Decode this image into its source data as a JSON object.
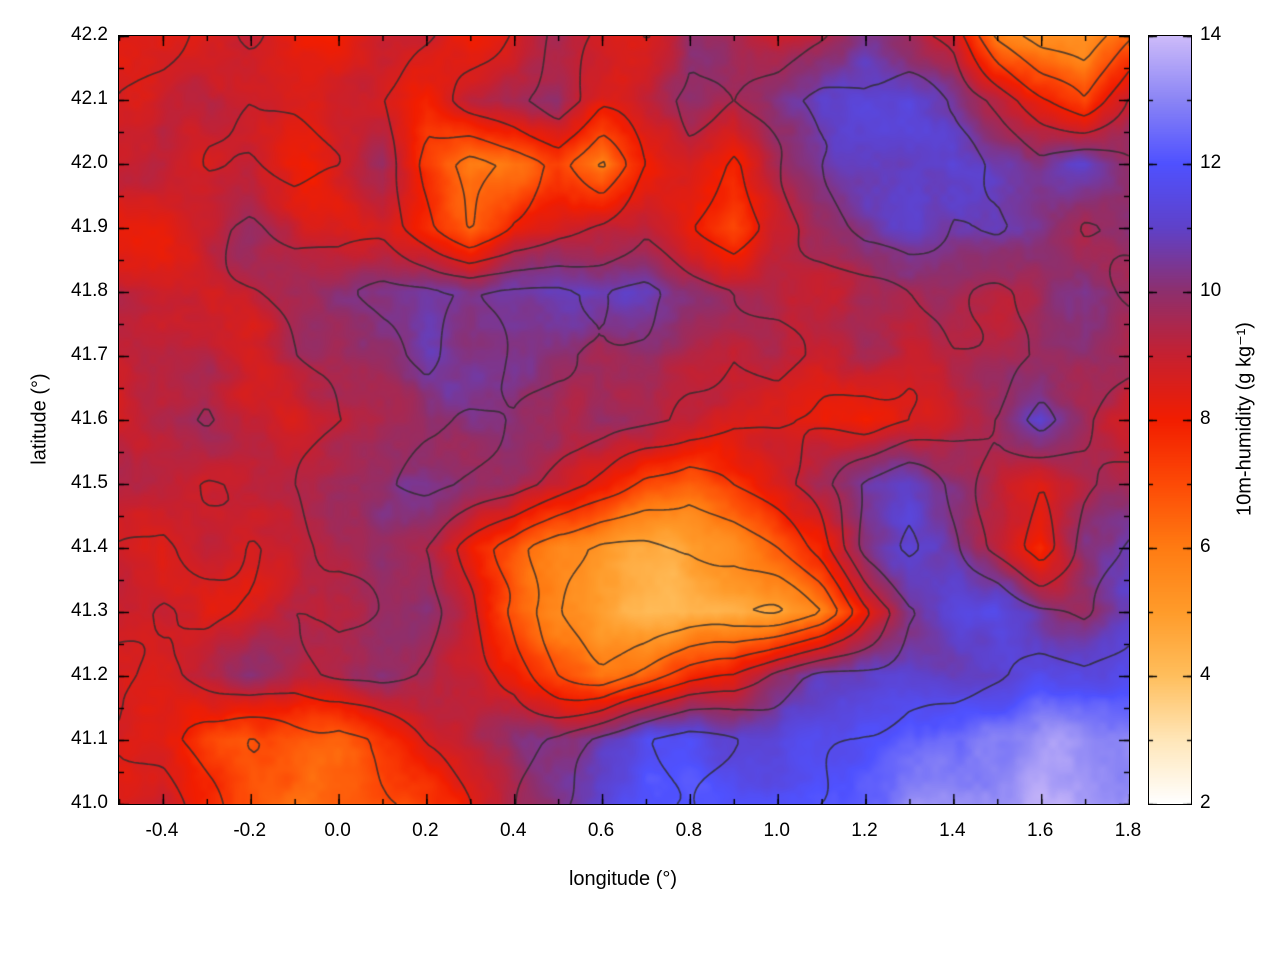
{
  "axes": {
    "x": {
      "label": "longitude (°)",
      "min": -0.5,
      "max": 1.8,
      "tick_values": [
        -0.4,
        -0.2,
        0.0,
        0.2,
        0.4,
        0.6,
        0.8,
        1.0,
        1.2,
        1.4,
        1.6,
        1.8
      ],
      "tick_labels": [
        "-0.4",
        "-0.2",
        "0.0",
        "0.2",
        "0.4",
        "0.6",
        "0.8",
        "1.0",
        "1.2",
        "1.4",
        "1.6",
        "1.8"
      ],
      "minor_step": 0.1
    },
    "y": {
      "label": "latitude (°)",
      "min": 41.0,
      "max": 42.2,
      "tick_values": [
        41.0,
        41.1,
        41.2,
        41.3,
        41.4,
        41.5,
        41.6,
        41.7,
        41.8,
        41.9,
        42.0,
        42.1,
        42.2
      ],
      "tick_labels": [
        "41.0",
        "41.1",
        "41.2",
        "41.3",
        "41.4",
        "41.5",
        "41.6",
        "41.7",
        "41.8",
        "41.9",
        "42.0",
        "42.1",
        "42.2"
      ],
      "minor_step": 0.05
    }
  },
  "colorbar": {
    "label": "10m-humidity (g kg⁻¹)",
    "min": 2,
    "max": 14,
    "tick_values": [
      2,
      4,
      6,
      8,
      10,
      12,
      14
    ],
    "tick_labels": [
      "2",
      "4",
      "6",
      "8",
      "10",
      "12",
      "14"
    ],
    "minor_step": 1
  },
  "chart_data": {
    "type": "heatmap",
    "title": "",
    "xlabel": "longitude (°)",
    "ylabel": "latitude (°)",
    "value_label": "10m-humidity (g kg⁻¹)",
    "x_range": [
      -0.5,
      1.8
    ],
    "y_range": [
      41.0,
      42.2
    ],
    "value_range": [
      2,
      14
    ],
    "grid_lons": [
      -0.5,
      -0.4,
      -0.3,
      -0.2,
      -0.1,
      0.0,
      0.1,
      0.2,
      0.3,
      0.4,
      0.5,
      0.6,
      0.7,
      0.8,
      0.9,
      1.0,
      1.1,
      1.2,
      1.3,
      1.4,
      1.5,
      1.6,
      1.7,
      1.8
    ],
    "grid_lats": [
      42.2,
      42.1,
      42.0,
      41.9,
      41.8,
      41.7,
      41.6,
      41.5,
      41.4,
      41.3,
      41.2,
      41.1,
      41.0
    ],
    "values": [
      [
        8.5,
        8.2,
        8.6,
        9.2,
        8.6,
        8.4,
        9.2,
        9.0,
        8.2,
        8.6,
        9.6,
        9.2,
        8.6,
        9.8,
        9.4,
        8.6,
        9.2,
        10.4,
        9.6,
        9.0,
        6.2,
        5.0,
        4.8,
        6.4
      ],
      [
        8.4,
        8.8,
        9.2,
        8.6,
        8.8,
        9.2,
        8.6,
        7.6,
        8.8,
        9.2,
        9.8,
        8.6,
        9.2,
        10.0,
        9.6,
        10.4,
        11.0,
        10.8,
        11.2,
        10.6,
        9.6,
        8.0,
        6.8,
        9.0
      ],
      [
        8.8,
        9.2,
        8.6,
        9.0,
        8.4,
        8.8,
        9.4,
        7.0,
        5.6,
        6.4,
        7.4,
        6.0,
        8.4,
        9.0,
        8.2,
        9.6,
        10.6,
        11.2,
        11.0,
        11.4,
        10.6,
        10.0,
        10.8,
        10.0
      ],
      [
        8.6,
        8.4,
        9.0,
        9.4,
        8.8,
        8.6,
        9.0,
        8.0,
        6.6,
        8.0,
        8.6,
        9.0,
        9.6,
        8.6,
        7.6,
        8.6,
        9.6,
        10.6,
        11.0,
        10.6,
        11.0,
        10.4,
        9.6,
        10.2
      ],
      [
        9.0,
        8.6,
        8.8,
        9.2,
        9.6,
        10.0,
        10.6,
        10.8,
        10.4,
        10.8,
        11.0,
        10.6,
        10.8,
        10.0,
        9.4,
        9.0,
        8.8,
        9.2,
        9.6,
        10.0,
        9.6,
        9.8,
        10.4,
        9.8
      ],
      [
        8.8,
        9.0,
        9.4,
        9.0,
        9.6,
        9.8,
        10.2,
        10.6,
        10.0,
        10.4,
        10.2,
        9.8,
        9.6,
        9.2,
        9.0,
        9.4,
        9.0,
        9.6,
        9.2,
        9.6,
        9.4,
        9.8,
        10.0,
        9.6
      ],
      [
        8.4,
        9.0,
        9.6,
        9.0,
        8.6,
        9.2,
        9.6,
        10.0,
        10.2,
        10.0,
        9.6,
        9.8,
        9.4,
        9.0,
        8.6,
        8.8,
        8.4,
        8.0,
        8.6,
        9.0,
        9.6,
        11.0,
        9.6,
        8.6
      ],
      [
        9.2,
        8.8,
        8.4,
        8.8,
        9.2,
        9.6,
        10.0,
        10.4,
        10.0,
        9.6,
        9.0,
        8.0,
        7.0,
        6.6,
        7.6,
        8.6,
        9.6,
        10.6,
        11.0,
        10.0,
        9.0,
        8.2,
        9.2,
        9.6
      ],
      [
        8.8,
        8.4,
        9.0,
        8.6,
        9.0,
        9.4,
        9.8,
        9.0,
        8.0,
        7.0,
        5.6,
        5.0,
        4.8,
        5.0,
        5.6,
        6.6,
        8.0,
        10.6,
        11.4,
        10.4,
        9.0,
        7.6,
        10.0,
        10.6
      ],
      [
        8.6,
        9.0,
        8.6,
        9.0,
        9.6,
        9.2,
        9.6,
        9.8,
        8.6,
        7.0,
        5.6,
        4.6,
        4.2,
        4.4,
        4.3,
        4.6,
        5.6,
        8.0,
        10.0,
        11.0,
        11.4,
        10.6,
        10.0,
        11.0
      ],
      [
        8.8,
        8.6,
        9.2,
        9.6,
        9.0,
        9.4,
        9.8,
        9.6,
        9.0,
        8.6,
        7.0,
        6.0,
        6.6,
        7.6,
        8.0,
        9.6,
        10.6,
        11.0,
        11.4,
        11.0,
        11.4,
        12.0,
        11.6,
        12.0
      ],
      [
        8.6,
        8.0,
        7.0,
        6.6,
        7.0,
        6.8,
        7.6,
        8.6,
        9.0,
        9.6,
        10.0,
        11.0,
        11.6,
        12.0,
        11.6,
        11.0,
        11.4,
        12.0,
        12.4,
        12.8,
        13.0,
        13.2,
        13.0,
        13.2
      ],
      [
        8.2,
        8.6,
        7.6,
        6.6,
        6.2,
        6.6,
        7.0,
        7.6,
        8.6,
        9.6,
        10.6,
        11.6,
        12.0,
        12.2,
        11.8,
        11.6,
        12.0,
        12.2,
        12.8,
        13.0,
        13.2,
        13.4,
        13.3,
        13.5
      ]
    ],
    "palette": [
      {
        "v": 2.0,
        "c": "#ffffff"
      },
      {
        "v": 3.0,
        "c": "#ffe6b8"
      },
      {
        "v": 4.0,
        "c": "#ffbe5c"
      },
      {
        "v": 5.0,
        "c": "#ff9b2a"
      },
      {
        "v": 6.0,
        "c": "#ff7b12"
      },
      {
        "v": 7.0,
        "c": "#fd4a06"
      },
      {
        "v": 8.0,
        "c": "#f21d00"
      },
      {
        "v": 9.0,
        "c": "#c62030"
      },
      {
        "v": 10.0,
        "c": "#8e2f6d"
      },
      {
        "v": 11.0,
        "c": "#5f41c9"
      },
      {
        "v": 12.0,
        "c": "#4f51ff"
      },
      {
        "v": 13.0,
        "c": "#8b85f5"
      },
      {
        "v": 14.0,
        "c": "#cdbbf9"
      }
    ],
    "contour_levels": [
      4.5,
      5.5,
      6.5,
      7.5,
      8.5,
      9.5,
      10.5,
      11.75
    ],
    "contour_color": "#2d2d2d",
    "legend": "none",
    "grid": "off"
  }
}
